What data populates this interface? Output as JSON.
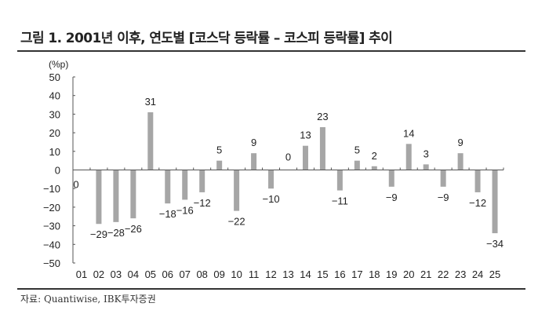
{
  "figure": {
    "title": "그림 1. 2001년 이후, 연도별 [코스닥 등락률 – 코스피 등락률] 추이",
    "source": "자료: Quantiwise, IBK투자증권"
  },
  "colors": {
    "bar": "#a6a6a6",
    "axis": "#555555",
    "text": "#222222"
  },
  "chart_data": {
    "type": "bar",
    "title": "2001년 이후, 연도별 [코스닥 등락률 – 코스피 등락률] 추이",
    "xlabel": "",
    "ylabel": "(%p)",
    "ylim": [
      -50,
      50
    ],
    "yticks": [
      50,
      40,
      30,
      20,
      10,
      0,
      -10,
      -20,
      -30,
      -40,
      -50
    ],
    "grid": false,
    "legend": null,
    "categories": [
      "01",
      "02",
      "03",
      "04",
      "05",
      "06",
      "07",
      "08",
      "09",
      "10",
      "11",
      "12",
      "13",
      "14",
      "15",
      "16",
      "17",
      "18",
      "19",
      "20",
      "21",
      "22",
      "23",
      "24",
      "25"
    ],
    "values": [
      0,
      -29,
      -28,
      -26,
      31,
      -18,
      -16,
      -12,
      5,
      -22,
      9,
      -10,
      0,
      13,
      23,
      -11,
      5,
      2,
      -9,
      14,
      3,
      -9,
      9,
      -12,
      -34
    ],
    "data_labels": [
      "0",
      "−29",
      "−28",
      "−26",
      "31",
      "−18",
      "−16",
      "−12",
      "5",
      "−22",
      "9",
      "−10",
      "0",
      "13",
      "23",
      "−11",
      "5",
      "2",
      "−9",
      "14",
      "3",
      "−9",
      "9",
      "−12",
      "−34"
    ]
  }
}
